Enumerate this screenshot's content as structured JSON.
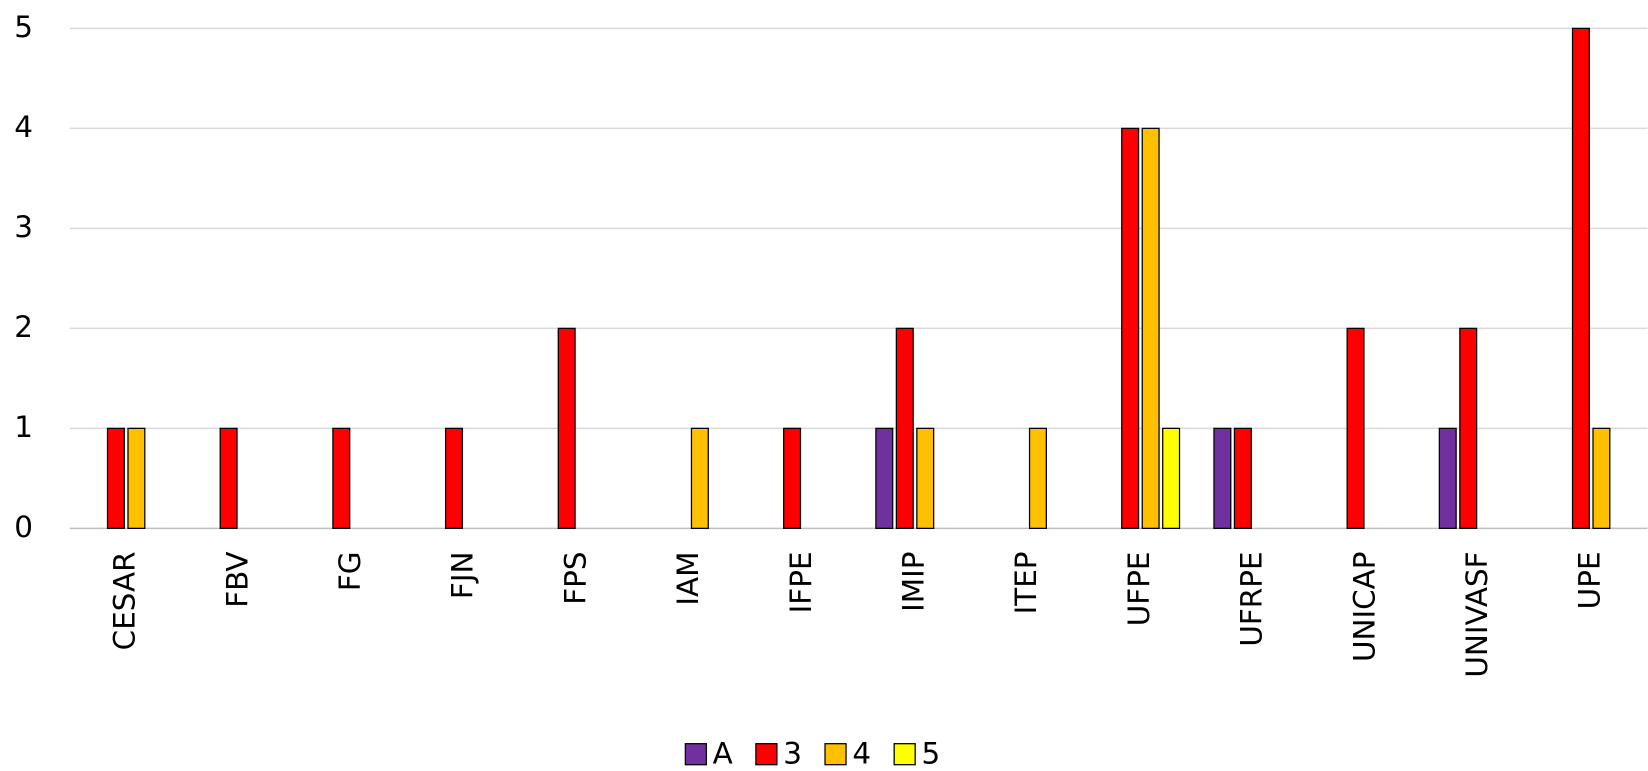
{
  "chart_data": {
    "type": "bar",
    "categories": [
      "CESAR",
      "FBV",
      "FG",
      "FJN",
      "FPS",
      "IAM",
      "IFPE",
      "IMIP",
      "ITEP",
      "UFPE",
      "UFRPE",
      "UNICAP",
      "UNIVASF",
      "UPE"
    ],
    "series": [
      {
        "name": "A",
        "color": "#7030a0",
        "values": [
          0,
          0,
          0,
          0,
          0,
          0,
          0,
          1,
          0,
          0,
          1,
          0,
          1,
          0
        ]
      },
      {
        "name": "3",
        "color": "#ff0000",
        "values": [
          1,
          1,
          1,
          1,
          2,
          0,
          1,
          2,
          0,
          4,
          1,
          2,
          2,
          5
        ]
      },
      {
        "name": "4",
        "color": "#ffc000",
        "values": [
          1,
          0,
          0,
          0,
          0,
          1,
          0,
          1,
          1,
          4,
          0,
          0,
          0,
          1
        ]
      },
      {
        "name": "5",
        "color": "#ffff00",
        "values": [
          0,
          0,
          0,
          0,
          0,
          0,
          0,
          0,
          0,
          1,
          0,
          0,
          0,
          0
        ]
      }
    ],
    "ylim": [
      0,
      5
    ],
    "yticks": [
      0,
      1,
      2,
      3,
      4,
      5
    ],
    "grid": true,
    "legend": "bottom"
  }
}
